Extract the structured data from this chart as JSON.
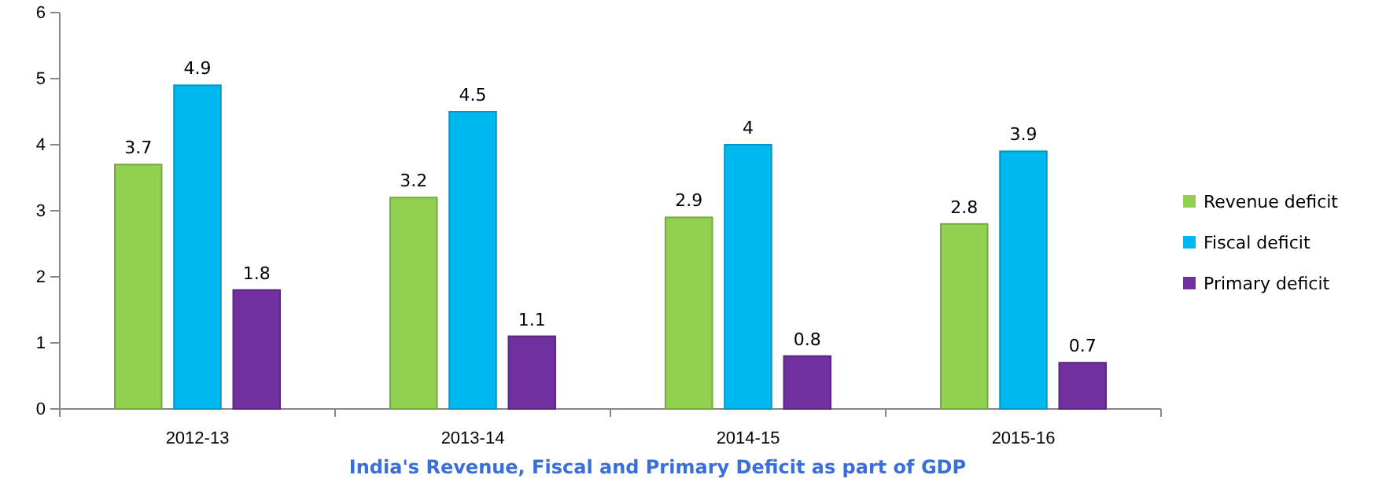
{
  "chart_data": {
    "type": "bar",
    "title": "India's Revenue, Fiscal and Primary Deficit as part of GDP",
    "categories": [
      "2012-13",
      "2013-14",
      "2014-15",
      "2015-16"
    ],
    "series": [
      {
        "name": "Revenue deficit",
        "color": "#92d050",
        "values": [
          3.7,
          3.2,
          2.9,
          2.8
        ]
      },
      {
        "name": "Fiscal deficit",
        "color": "#00b8f0",
        "values": [
          4.9,
          4.5,
          4,
          3.9
        ]
      },
      {
        "name": "Primary deficit",
        "color": "#7030a0",
        "values": [
          1.8,
          1.1,
          0.8,
          0.7
        ]
      }
    ],
    "ylim": [
      0,
      6
    ],
    "yticks": [
      0,
      1,
      2,
      3,
      4,
      5,
      6
    ],
    "grid": false,
    "legend": "right",
    "data_labels": true
  }
}
